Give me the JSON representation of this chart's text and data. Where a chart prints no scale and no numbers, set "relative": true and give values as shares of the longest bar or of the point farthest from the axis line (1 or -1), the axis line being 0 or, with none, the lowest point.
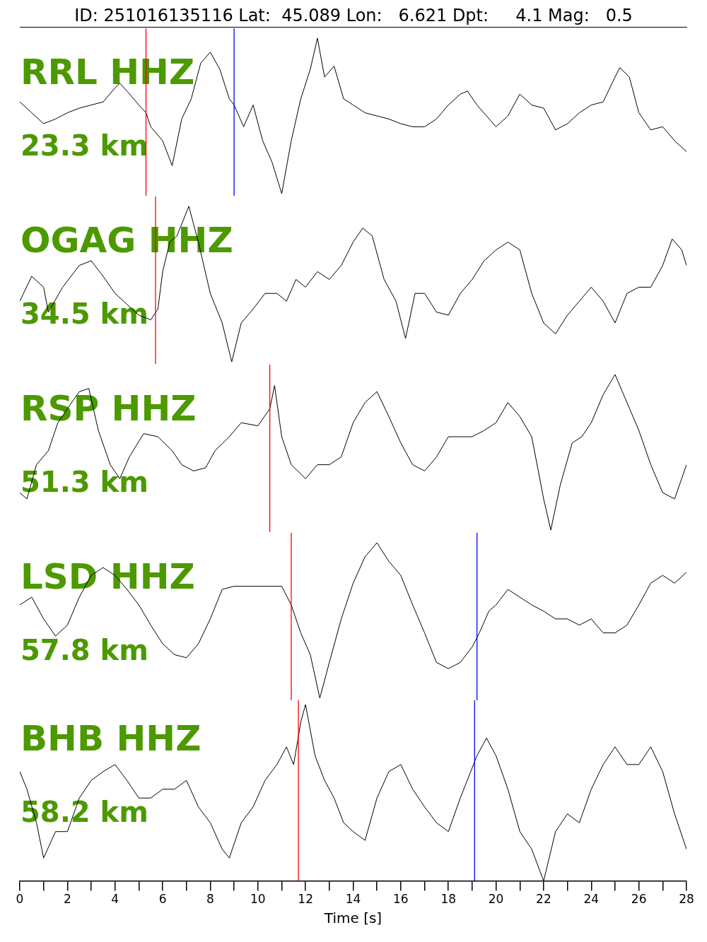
{
  "chart_data": [
    {
      "type": "line",
      "title": "ID: 251016135116 Lat:  45.089 Lon:   6.621 Dpt:     4.1 Mag:   0.5",
      "relative": true,
      "tick_labels": false,
      "xlim": [
        0,
        28
      ],
      "marker": "none",
      "legend": false,
      "annotations": [
        "RRL HHZ",
        "23.3 km"
      ],
      "ref_lines": [
        {
          "axis": "x",
          "value": 5.3,
          "color": "#ff0000"
        },
        {
          "axis": "x",
          "value": 9.0,
          "color": "#0000ff"
        }
      ],
      "series": [
        {
          "color": "#000000",
          "x": [
            0,
            0.5,
            1,
            1.5,
            2,
            2.5,
            3,
            3.5,
            4,
            4.2,
            4.5,
            5,
            5.3,
            5.5,
            6,
            6.4,
            6.8,
            7.2,
            7.6,
            8,
            8.4,
            8.8,
            9,
            9.4,
            9.8,
            10.2,
            10.6,
            11,
            11.4,
            11.8,
            12.2,
            12.5,
            12.8,
            13.2,
            13.6,
            14,
            14.5,
            15,
            15.5,
            16,
            16.5,
            17,
            17.5,
            18,
            18.5,
            18.8,
            19.2,
            19.6,
            20,
            20.5,
            21,
            21.5,
            22,
            22.5,
            23,
            23.5,
            24,
            24.5,
            25,
            25.2,
            25.6,
            26,
            26.5,
            27,
            27.5,
            28
          ],
          "values": [
            0.59,
            0.52,
            0.45,
            0.48,
            0.52,
            0.55,
            0.57,
            0.59,
            0.68,
            0.71,
            0.66,
            0.57,
            0.52,
            0.43,
            0.34,
            0.18,
            0.48,
            0.61,
            0.84,
            0.91,
            0.8,
            0.61,
            0.57,
            0.43,
            0.57,
            0.34,
            0.2,
            0,
            0.34,
            0.61,
            0.8,
            1,
            0.75,
            0.82,
            0.61,
            0.57,
            0.52,
            0.5,
            0.48,
            0.45,
            0.43,
            0.43,
            0.48,
            0.57,
            0.64,
            0.66,
            0.57,
            0.5,
            0.43,
            0.5,
            0.64,
            0.57,
            0.55,
            0.41,
            0.45,
            0.52,
            0.57,
            0.59,
            0.75,
            0.81,
            0.75,
            0.52,
            0.41,
            0.43,
            0.34,
            0.27
          ]
        }
      ]
    },
    {
      "type": "line",
      "relative": true,
      "tick_labels": false,
      "xlim": [
        0,
        28
      ],
      "marker": "none",
      "legend": false,
      "annotations": [
        "OGAG HHZ",
        "34.5 km"
      ],
      "ref_lines": [
        {
          "axis": "x",
          "value": 5.7,
          "color": "#ff0000"
        }
      ],
      "series": [
        {
          "color": "#000000",
          "x": [
            0,
            0.5,
            1,
            1.2,
            1.8,
            2.5,
            3,
            3.5,
            4,
            4.5,
            5,
            5.5,
            5.8,
            6,
            6.3,
            6.6,
            7.1,
            7.5,
            8,
            8.5,
            8.9,
            9.3,
            9.8,
            10.3,
            10.8,
            11.2,
            11.6,
            12,
            12.5,
            13,
            13.5,
            14,
            14.4,
            14.8,
            15.3,
            15.8,
            16.2,
            16.6,
            17,
            17.5,
            18,
            18.5,
            19,
            19.5,
            20,
            20.5,
            21,
            21.5,
            22,
            22.5,
            23,
            23.5,
            24,
            24.5,
            25,
            25.5,
            26,
            26.5,
            27,
            27.4,
            27.8,
            28
          ],
          "values": [
            0.39,
            0.55,
            0.48,
            0.32,
            0.48,
            0.62,
            0.65,
            0.55,
            0.44,
            0.37,
            0.3,
            0.27,
            0.34,
            0.58,
            0.77,
            0.81,
            1,
            0.77,
            0.44,
            0.25,
            0,
            0.25,
            0.34,
            0.44,
            0.44,
            0.39,
            0.53,
            0.48,
            0.58,
            0.53,
            0.62,
            0.77,
            0.86,
            0.81,
            0.53,
            0.39,
            0.15,
            0.44,
            0.44,
            0.32,
            0.3,
            0.44,
            0.53,
            0.65,
            0.72,
            0.77,
            0.72,
            0.44,
            0.25,
            0.18,
            0.3,
            0.39,
            0.48,
            0.39,
            0.25,
            0.44,
            0.48,
            0.48,
            0.62,
            0.79,
            0.72,
            0.62
          ]
        }
      ]
    },
    {
      "type": "line",
      "relative": true,
      "tick_labels": false,
      "xlim": [
        0,
        28
      ],
      "marker": "none",
      "legend": false,
      "annotations": [
        "RSP HHZ",
        "51.3 km"
      ],
      "ref_lines": [
        {
          "axis": "x",
          "value": 10.5,
          "color": "#ff0000"
        }
      ],
      "series": [
        {
          "color": "#000000",
          "x": [
            0,
            0.3,
            0.7,
            1.2,
            1.6,
            2,
            2.5,
            2.9,
            3.3,
            3.8,
            4.2,
            4.6,
            5.2,
            5.8,
            6.4,
            6.8,
            7.3,
            7.8,
            8.2,
            8.8,
            9.3,
            10,
            10.5,
            10.7,
            11,
            11.4,
            12,
            12.5,
            13,
            13.5,
            14,
            14.5,
            15,
            15.5,
            16,
            16.5,
            17,
            17.5,
            18,
            18.5,
            19,
            19.5,
            20,
            20.5,
            21,
            21.5,
            22,
            22.3,
            22.7,
            23.2,
            23.6,
            24,
            24.5,
            25,
            25.5,
            26,
            26.5,
            27,
            27.5,
            28
          ],
          "values": [
            0.24,
            0.2,
            0.42,
            0.51,
            0.69,
            0.78,
            0.89,
            0.91,
            0.64,
            0.42,
            0.33,
            0.47,
            0.62,
            0.6,
            0.51,
            0.42,
            0.38,
            0.4,
            0.51,
            0.6,
            0.69,
            0.67,
            0.78,
            0.93,
            0.6,
            0.42,
            0.33,
            0.42,
            0.42,
            0.47,
            0.69,
            0.82,
            0.89,
            0.73,
            0.56,
            0.42,
            0.38,
            0.47,
            0.6,
            0.6,
            0.6,
            0.64,
            0.69,
            0.82,
            0.73,
            0.6,
            0.2,
            0,
            0.29,
            0.56,
            0.6,
            0.69,
            0.87,
            1,
            0.82,
            0.64,
            0.42,
            0.24,
            0.2,
            0.42
          ]
        }
      ]
    },
    {
      "type": "line",
      "relative": true,
      "tick_labels": false,
      "xlim": [
        0,
        28
      ],
      "marker": "none",
      "legend": false,
      "annotations": [
        "LSD HHZ",
        "57.8 km"
      ],
      "ref_lines": [
        {
          "axis": "x",
          "value": 11.4,
          "color": "#ff0000"
        },
        {
          "axis": "x",
          "value": 19.2,
          "color": "#0000ff"
        }
      ],
      "series": [
        {
          "color": "#000000",
          "x": [
            0,
            0.5,
            1,
            1.5,
            2,
            2.5,
            3,
            3.5,
            4,
            4.5,
            5,
            5.5,
            6,
            6.5,
            7,
            7.5,
            8,
            8.5,
            9,
            9.5,
            10,
            10.5,
            11,
            11.4,
            11.8,
            12.2,
            12.6,
            13,
            13.5,
            14,
            14.5,
            15,
            15.5,
            16,
            16.5,
            17,
            17.5,
            18,
            18.5,
            19,
            19.3,
            19.7,
            20,
            20.5,
            21,
            21.5,
            22,
            22.5,
            23,
            23.5,
            24,
            24.5,
            25,
            25.5,
            26,
            26.5,
            27,
            27.5,
            28
          ],
          "values": [
            0.6,
            0.65,
            0.51,
            0.4,
            0.47,
            0.65,
            0.79,
            0.84,
            0.79,
            0.7,
            0.6,
            0.47,
            0.35,
            0.28,
            0.26,
            0.35,
            0.51,
            0.7,
            0.72,
            0.72,
            0.72,
            0.72,
            0.72,
            0.6,
            0.42,
            0.28,
            0,
            0.23,
            0.51,
            0.74,
            0.91,
            1,
            0.88,
            0.79,
            0.6,
            0.42,
            0.23,
            0.19,
            0.23,
            0.33,
            0.42,
            0.56,
            0.6,
            0.7,
            0.65,
            0.6,
            0.56,
            0.51,
            0.51,
            0.47,
            0.51,
            0.42,
            0.42,
            0.47,
            0.6,
            0.74,
            0.79,
            0.74,
            0.81
          ]
        }
      ]
    },
    {
      "type": "line",
      "relative": true,
      "xlim": [
        0,
        28
      ],
      "marker": "none",
      "legend": false,
      "tick_labels": "x",
      "xlabel": "Time [s]",
      "xticks": [
        0,
        {
          "value": 1,
          "label": null
        },
        2,
        {
          "value": 3,
          "label": null
        },
        4,
        {
          "value": 5,
          "label": null
        },
        6,
        {
          "value": 7,
          "label": null
        },
        8,
        {
          "value": 9,
          "label": null
        },
        10,
        {
          "value": 11,
          "label": null
        },
        12,
        {
          "value": 13,
          "label": null
        },
        14,
        {
          "value": 15,
          "label": null
        },
        16,
        {
          "value": 17,
          "label": null
        },
        18,
        {
          "value": 19,
          "label": null
        },
        20,
        {
          "value": 21,
          "label": null
        },
        22,
        {
          "value": 23,
          "label": null
        },
        24,
        {
          "value": 25,
          "label": null
        },
        26,
        {
          "value": 27,
          "label": null
        },
        28
      ],
      "annotations": [
        "BHB HHZ",
        "58.2 km"
      ],
      "ref_lines": [
        {
          "axis": "x",
          "value": 11.7,
          "color": "#ff0000"
        },
        {
          "axis": "x",
          "value": 19.1,
          "color": "#0000ff"
        }
      ],
      "series": [
        {
          "color": "#000000",
          "x": [
            0,
            0.3,
            0.7,
            1,
            1.5,
            2,
            2.5,
            3,
            3.5,
            4,
            4.5,
            5,
            5.5,
            6,
            6.5,
            7,
            7.5,
            8,
            8.5,
            8.8,
            9.3,
            9.8,
            10.3,
            10.8,
            11.2,
            11.5,
            11.8,
            12,
            12.4,
            12.8,
            13.2,
            13.6,
            14,
            14.5,
            15,
            15.5,
            16,
            16.5,
            17,
            17.5,
            18,
            18.5,
            19.2,
            19.6,
            20,
            20.5,
            21,
            21.5,
            22,
            22.5,
            23,
            23.5,
            24,
            24.5,
            25,
            25.5,
            26,
            26.5,
            27,
            27.5,
            28
          ],
          "values": [
            0.62,
            0.52,
            0.33,
            0.13,
            0.28,
            0.28,
            0.47,
            0.57,
            0.62,
            0.66,
            0.57,
            0.47,
            0.47,
            0.52,
            0.52,
            0.57,
            0.42,
            0.33,
            0.18,
            0.13,
            0.33,
            0.42,
            0.57,
            0.66,
            0.76,
            0.66,
            0.9,
            1,
            0.71,
            0.57,
            0.47,
            0.33,
            0.28,
            0.23,
            0.47,
            0.62,
            0.66,
            0.52,
            0.42,
            0.33,
            0.28,
            0.47,
            0.71,
            0.81,
            0.71,
            0.52,
            0.28,
            0.18,
            0,
            0.28,
            0.38,
            0.33,
            0.52,
            0.66,
            0.76,
            0.66,
            0.66,
            0.76,
            0.62,
            0.38,
            0.18
          ]
        }
      ]
    }
  ]
}
